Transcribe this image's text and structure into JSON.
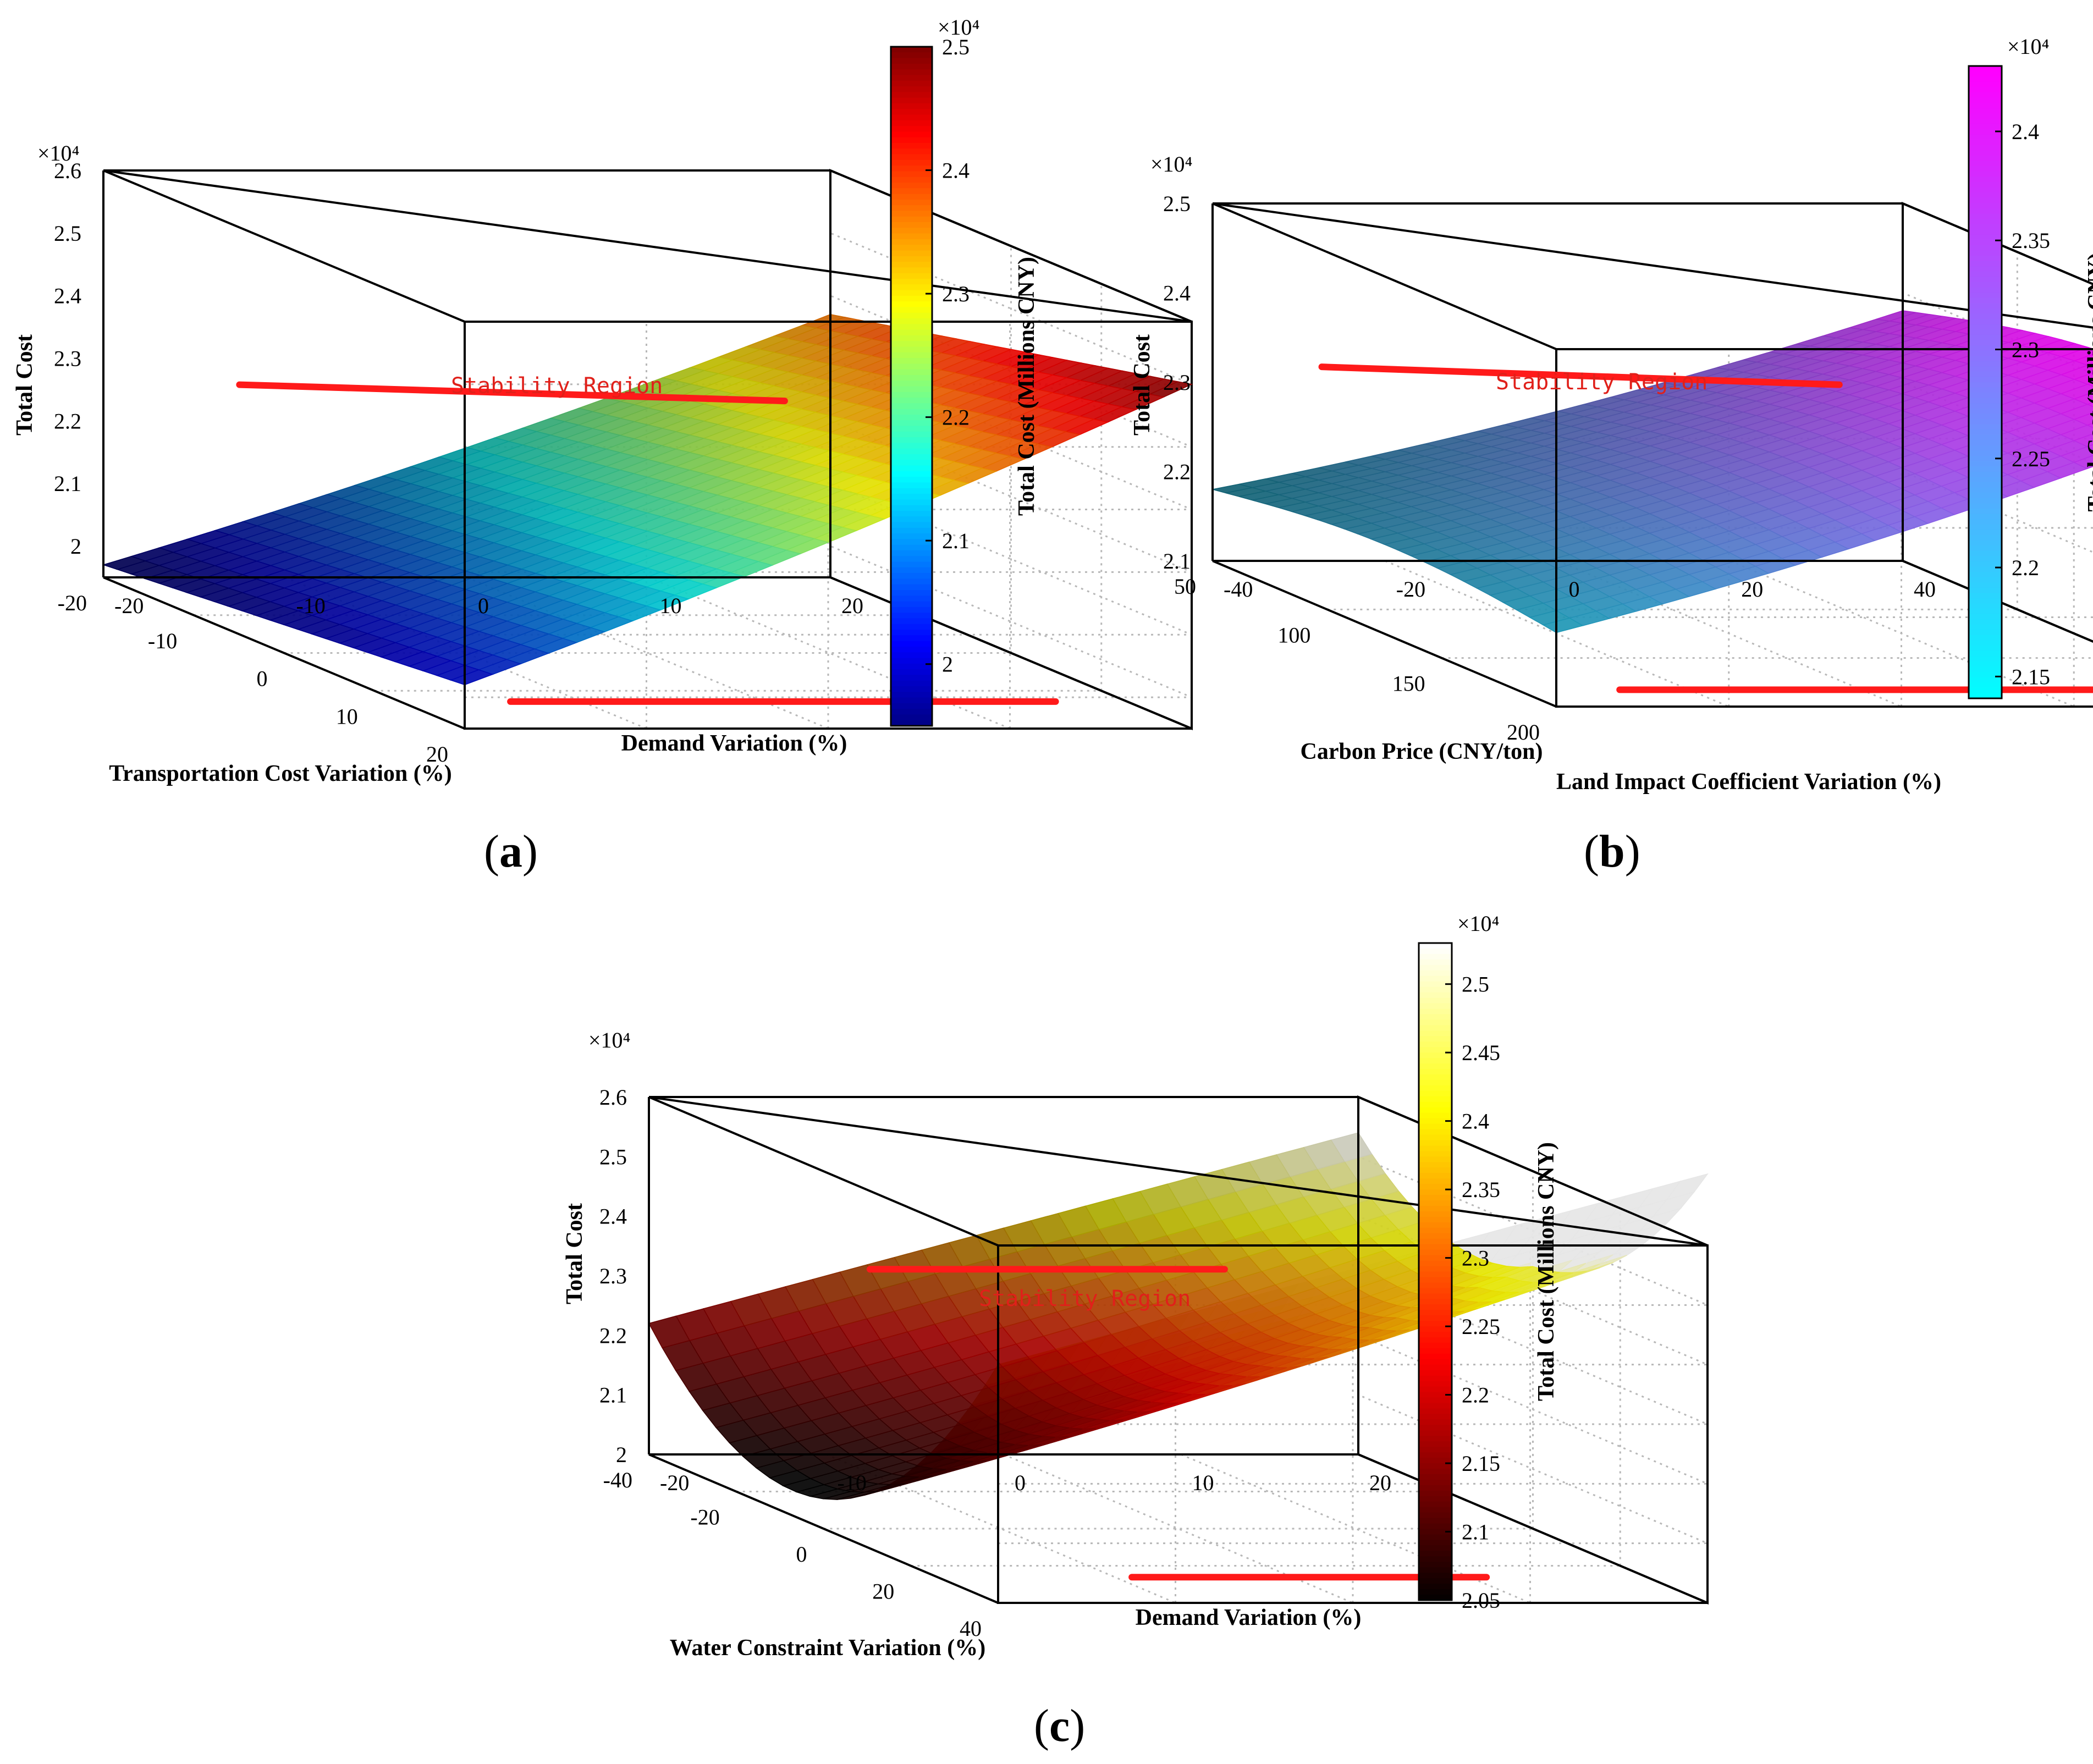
{
  "figure_labels": [
    "(a)",
    "(b)",
    "(c)"
  ],
  "chart_data": [
    {
      "type": "surface3d",
      "id": "a",
      "x_label": "Transportation Cost Variation (%)",
      "y_label": "Demand Variation (%)",
      "z_label": "Total Cost",
      "z_exponent": "×10⁴",
      "x_ticks": [
        "-20",
        "-10",
        "0",
        "10",
        "20"
      ],
      "y_ticks": [
        "-20",
        "-10",
        "0",
        "10",
        "20"
      ],
      "z_ticks": [
        "2",
        "2.1",
        "2.2",
        "2.3",
        "2.4",
        "2.5",
        "2.6"
      ],
      "x_range": [
        -20,
        20
      ],
      "y_range": [
        -20,
        20
      ],
      "z_range": [
        1.95,
        2.6
      ],
      "surface_corner_values": {
        "x_min_y_min": 1.97,
        "x_max_y_min": 2.02,
        "x_min_y_max": 2.36,
        "x_max_y_max": 2.49
      },
      "colormap": "jet",
      "colorbar_label": "Total Cost (Millions CNY)",
      "colorbar_exponent": "×10⁴",
      "colorbar_ticks": [
        "2",
        "2.1",
        "2.2",
        "2.3",
        "2.4",
        "2.5"
      ],
      "colorbar_range": [
        1.95,
        2.5
      ],
      "annotation": "Stability Region",
      "stability_lines": [
        [
          [
            -15,
            -15
          ],
          [
            -15,
            15
          ]
        ],
        [
          [
            15,
            -15
          ],
          [
            15,
            15
          ]
        ]
      ]
    },
    {
      "type": "surface3d",
      "id": "b",
      "x_label": "Carbon Price (CNY/ton)",
      "y_label": "Land Impact Coefficient Variation (%)",
      "z_label": "Total Cost",
      "z_exponent": "×10⁴",
      "x_ticks": [
        "50",
        "100",
        "150",
        "200"
      ],
      "y_ticks": [
        "-40",
        "-20",
        "0",
        "20",
        "40"
      ],
      "z_ticks": [
        "2.1",
        "2.2",
        "2.3",
        "2.4",
        "2.5"
      ],
      "x_range": [
        50,
        200
      ],
      "y_range": [
        -40,
        40
      ],
      "z_range": [
        2.1,
        2.5
      ],
      "surface_corner_values": {
        "x_min_y_min": 2.18,
        "x_max_y_min": 2.18,
        "x_min_y_max": 2.38,
        "x_max_y_max": 2.43
      },
      "colormap": "cool",
      "colorbar_label": "Total Cost (Millions CNY)",
      "colorbar_exponent": "×10⁴",
      "colorbar_ticks": [
        "2.15",
        "2.2",
        "2.25",
        "2.3",
        "2.35",
        "2.4"
      ],
      "colorbar_range": [
        2.14,
        2.43
      ],
      "annotation": "Stability Region",
      "stability_lines": [
        [
          [
            60,
            -30
          ],
          [
            60,
            30
          ]
        ],
        [
          [
            190,
            -30
          ],
          [
            190,
            30
          ]
        ]
      ]
    },
    {
      "type": "surface3d",
      "id": "c",
      "x_label": "Water Constraint Variation (%)",
      "y_label": "Demand Variation (%)",
      "z_label": "Total Cost",
      "z_exponent": "×10⁴",
      "x_ticks": [
        "-40",
        "-20",
        "0",
        "20",
        "40"
      ],
      "y_ticks": [
        "-20",
        "-10",
        "0",
        "10",
        "20"
      ],
      "z_ticks": [
        "2",
        "2.1",
        "2.2",
        "2.3",
        "2.4",
        "2.5",
        "2.6"
      ],
      "x_range": [
        -40,
        40
      ],
      "y_range": [
        -20,
        20
      ],
      "z_range": [
        2.0,
        2.6
      ],
      "surface_corner_values": {
        "x_min_y_min": 2.2,
        "x_max_y_min": 2.06,
        "x_min_y_max": 2.55,
        "x_max_y_max": 2.53
      },
      "colormap": "hot",
      "colorbar_label": "Total Cost (Millions CNY)",
      "colorbar_exponent": "×10⁴",
      "colorbar_ticks": [
        "2.05",
        "2.1",
        "2.15",
        "2.2",
        "2.25",
        "2.3",
        "2.35",
        "2.4",
        "2.45",
        "2.5"
      ],
      "colorbar_range": [
        2.05,
        2.53
      ],
      "annotation": "Stability Region",
      "stability_lines": [
        [
          [
            -30,
            -10
          ],
          [
            -30,
            10
          ]
        ],
        [
          [
            30,
            -10
          ],
          [
            30,
            10
          ]
        ]
      ]
    }
  ]
}
